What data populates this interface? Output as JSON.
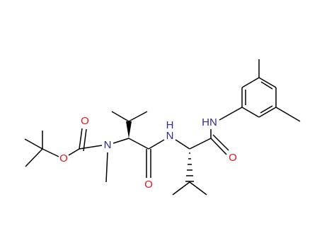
{
  "atoms": [
    {
      "label": "O"
    },
    {
      "label": "O"
    },
    {
      "label": "N"
    },
    {
      "label": "O"
    },
    {
      "label": "H"
    },
    {
      "label": "N"
    },
    {
      "label": "O"
    },
    {
      "label": "HN"
    }
  ]
}
